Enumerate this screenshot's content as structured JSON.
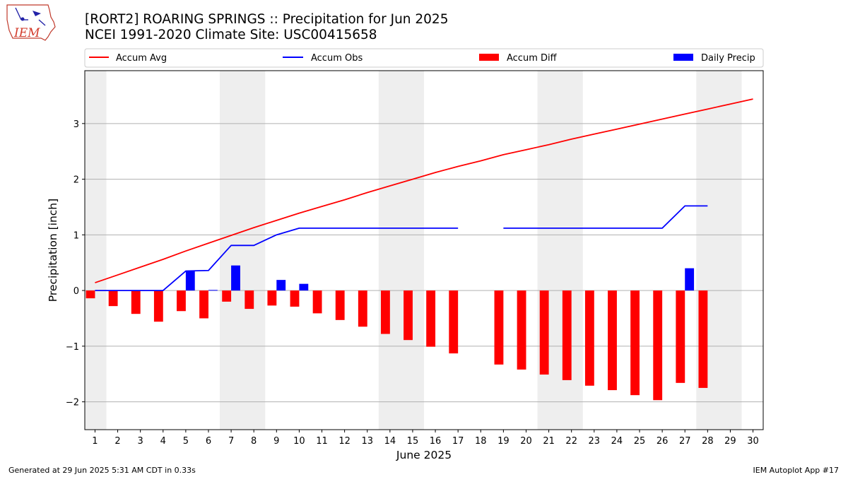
{
  "header": {
    "logo_text": "IEM",
    "title_line1": "[RORT2] ROARING SPRINGS :: Precipitation for Jun 2025",
    "title_line2": "NCEI 1991-2020 Climate Site: USC00415658"
  },
  "footer": {
    "generated": "Generated at 29 Jun 2025 5:31 AM CDT in 0.33s",
    "app": "IEM Autoplot App #17"
  },
  "colors": {
    "avg": "#ff0000",
    "obs": "#0000ff",
    "diff": "#ff0000",
    "daily": "#0000ff",
    "weekend_shade": "#eeeeee",
    "grid": "#b0b0b0"
  },
  "chart_data": {
    "type": "bar",
    "title": "[RORT2] ROARING SPRINGS :: Precipitation for Jun 2025",
    "subtitle": "NCEI 1991-2020 Climate Site: USC00415658",
    "xlabel": "June 2025",
    "ylabel": "Precipitation [inch]",
    "x": [
      1,
      2,
      3,
      4,
      5,
      6,
      7,
      8,
      9,
      10,
      11,
      12,
      13,
      14,
      15,
      16,
      17,
      18,
      19,
      20,
      21,
      22,
      23,
      24,
      25,
      26,
      27,
      28,
      29,
      30
    ],
    "xlim": [
      0.55,
      30.45
    ],
    "ylim": [
      -2.5,
      3.95
    ],
    "yticks": [
      -2,
      -1,
      0,
      1,
      2,
      3
    ],
    "ytick_labels": [
      "−2",
      "−1",
      "0",
      "1",
      "2",
      "3"
    ],
    "grid": "horizontal",
    "legend_position": "top",
    "legend": [
      "Accum Avg",
      "Accum Obs",
      "Accum Diff",
      "Daily Precip"
    ],
    "shaded_weekends": [
      [
        0.5,
        1.5
      ],
      [
        6.5,
        8.5
      ],
      [
        13.5,
        15.5
      ],
      [
        20.5,
        22.5
      ],
      [
        27.5,
        29.5
      ]
    ],
    "series": [
      {
        "name": "Accum Avg",
        "kind": "line",
        "x": [
          1,
          2,
          3,
          4,
          5,
          6,
          7,
          8,
          9,
          10,
          11,
          12,
          13,
          14,
          15,
          16,
          17,
          18,
          19,
          20,
          21,
          22,
          23,
          24,
          25,
          26,
          27,
          28,
          29,
          30
        ],
        "values": [
          0.14,
          0.28,
          0.42,
          0.56,
          0.71,
          0.85,
          0.99,
          1.13,
          1.26,
          1.39,
          1.51,
          1.63,
          1.76,
          1.88,
          2.0,
          2.12,
          2.23,
          2.33,
          2.44,
          2.53,
          2.62,
          2.72,
          2.81,
          2.9,
          2.99,
          3.08,
          3.17,
          3.26,
          3.35,
          3.44
        ]
      },
      {
        "name": "Accum Obs",
        "kind": "line",
        "x": [
          1,
          2,
          3,
          4,
          5,
          6,
          7,
          8,
          9,
          10,
          11,
          12,
          13,
          14,
          15,
          16,
          17,
          18,
          19,
          20,
          21,
          22,
          23,
          24,
          25,
          26,
          27,
          28
        ],
        "values": [
          0.0,
          0.0,
          0.0,
          0.0,
          0.35,
          0.36,
          0.81,
          0.81,
          1.0,
          1.12,
          1.12,
          1.12,
          1.12,
          1.12,
          1.12,
          1.12,
          1.12,
          null,
          1.12,
          1.12,
          1.12,
          1.12,
          1.12,
          1.12,
          1.12,
          1.12,
          1.52,
          1.52
        ]
      },
      {
        "name": "Accum Diff",
        "kind": "bar",
        "x": [
          1,
          2,
          3,
          4,
          5,
          6,
          7,
          8,
          9,
          10,
          11,
          12,
          13,
          14,
          15,
          16,
          17,
          19,
          20,
          21,
          22,
          23,
          24,
          25,
          26,
          27,
          28
        ],
        "values": [
          -0.14,
          -0.28,
          -0.42,
          -0.56,
          -0.37,
          -0.5,
          -0.2,
          -0.33,
          -0.27,
          -0.29,
          -0.41,
          -0.53,
          -0.65,
          -0.78,
          -0.89,
          -1.01,
          -1.13,
          -1.33,
          -1.42,
          -1.51,
          -1.61,
          -1.71,
          -1.79,
          -1.88,
          -1.97,
          -1.66,
          -1.75
        ]
      },
      {
        "name": "Daily Precip",
        "kind": "bar",
        "x": [
          5,
          6,
          7,
          9,
          10,
          27
        ],
        "values": [
          0.35,
          0.01,
          0.45,
          0.19,
          0.12,
          0.4
        ]
      }
    ]
  }
}
